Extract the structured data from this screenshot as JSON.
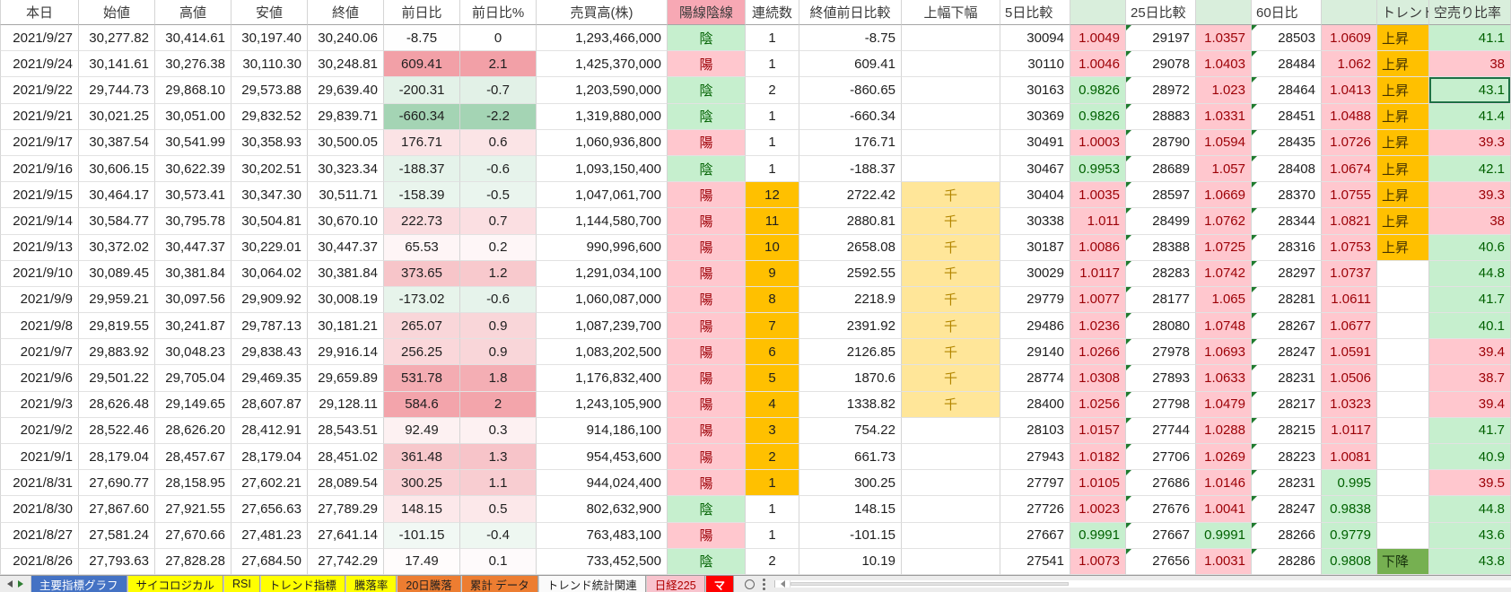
{
  "columns": [
    {
      "key": "date",
      "label": "本日"
    },
    {
      "key": "open",
      "label": "始値"
    },
    {
      "key": "high",
      "label": "高値"
    },
    {
      "key": "low",
      "label": "安値"
    },
    {
      "key": "close",
      "label": "終値"
    },
    {
      "key": "chg",
      "label": "前日比"
    },
    {
      "key": "chg_pct",
      "label": "前日比%"
    },
    {
      "key": "volume",
      "label": "売買高(株)"
    },
    {
      "key": "candle",
      "label": "陽線陰線"
    },
    {
      "key": "streak",
      "label": "連続数"
    },
    {
      "key": "close_cmp",
      "label": "終値前日比較"
    },
    {
      "key": "range_mark",
      "label": "上幅下幅"
    },
    {
      "key": "d5",
      "label": "5日比較"
    },
    {
      "key": "d5_ratio",
      "label": ""
    },
    {
      "key": "d25",
      "label": "25日比較"
    },
    {
      "key": "d25_ratio",
      "label": ""
    },
    {
      "key": "d60",
      "label": "60日比"
    },
    {
      "key": "d60_ratio",
      "label": ""
    },
    {
      "key": "trend",
      "label": "トレンド"
    },
    {
      "key": "short_ratio",
      "label": "空売り比率"
    }
  ],
  "rows": [
    {
      "date": "2021/9/27",
      "open": "30,277.82",
      "high": "30,414.61",
      "low": "30,197.40",
      "close": "30,240.06",
      "chg": "-8.75",
      "chg_pct": "0",
      "volume": "1,293,466,000",
      "candle": "陰",
      "streak": "1",
      "streak_hot": false,
      "close_cmp": "-8.75",
      "range_mark": "",
      "d5": "30094",
      "d5_ratio": "1.0049",
      "d25": "29197",
      "d25_ratio": "1.0357",
      "d60": "28503",
      "d60_ratio": "1.0609",
      "trend": "上昇",
      "short_ratio": "41.1",
      "selected": false
    },
    {
      "date": "2021/9/24",
      "open": "30,141.61",
      "high": "30,276.38",
      "low": "30,110.30",
      "close": "30,248.81",
      "chg": "609.41",
      "chg_pct": "2.1",
      "volume": "1,425,370,000",
      "candle": "陽",
      "streak": "1",
      "streak_hot": false,
      "close_cmp": "609.41",
      "range_mark": "",
      "d5": "30110",
      "d5_ratio": "1.0046",
      "d25": "29078",
      "d25_ratio": "1.0403",
      "d60": "28484",
      "d60_ratio": "1.062",
      "trend": "上昇",
      "short_ratio": "38",
      "selected": false
    },
    {
      "date": "2021/9/22",
      "open": "29,744.73",
      "high": "29,868.10",
      "low": "29,573.88",
      "close": "29,639.40",
      "chg": "-200.31",
      "chg_pct": "-0.7",
      "volume": "1,203,590,000",
      "candle": "陰",
      "streak": "2",
      "streak_hot": false,
      "close_cmp": "-860.65",
      "range_mark": "",
      "d5": "30163",
      "d5_ratio": "0.9826",
      "d25": "28972",
      "d25_ratio": "1.023",
      "d60": "28464",
      "d60_ratio": "1.0413",
      "trend": "上昇",
      "short_ratio": "43.1",
      "selected": true
    },
    {
      "date": "2021/9/21",
      "open": "30,021.25",
      "high": "30,051.00",
      "low": "29,832.52",
      "close": "29,839.71",
      "chg": "-660.34",
      "chg_pct": "-2.2",
      "volume": "1,319,880,000",
      "candle": "陰",
      "streak": "1",
      "streak_hot": false,
      "close_cmp": "-660.34",
      "range_mark": "",
      "d5": "30369",
      "d5_ratio": "0.9826",
      "d25": "28883",
      "d25_ratio": "1.0331",
      "d60": "28451",
      "d60_ratio": "1.0488",
      "trend": "上昇",
      "short_ratio": "41.4",
      "selected": false
    },
    {
      "date": "2021/9/17",
      "open": "30,387.54",
      "high": "30,541.99",
      "low": "30,358.93",
      "close": "30,500.05",
      "chg": "176.71",
      "chg_pct": "0.6",
      "volume": "1,060,936,800",
      "candle": "陽",
      "streak": "1",
      "streak_hot": false,
      "close_cmp": "176.71",
      "range_mark": "",
      "d5": "30491",
      "d5_ratio": "1.0003",
      "d25": "28790",
      "d25_ratio": "1.0594",
      "d60": "28435",
      "d60_ratio": "1.0726",
      "trend": "上昇",
      "short_ratio": "39.3",
      "selected": false
    },
    {
      "date": "2021/9/16",
      "open": "30,606.15",
      "high": "30,622.39",
      "low": "30,202.51",
      "close": "30,323.34",
      "chg": "-188.37",
      "chg_pct": "-0.6",
      "volume": "1,093,150,400",
      "candle": "陰",
      "streak": "1",
      "streak_hot": false,
      "close_cmp": "-188.37",
      "range_mark": "",
      "d5": "30467",
      "d5_ratio": "0.9953",
      "d25": "28689",
      "d25_ratio": "1.057",
      "d60": "28408",
      "d60_ratio": "1.0674",
      "trend": "上昇",
      "short_ratio": "42.1",
      "selected": false
    },
    {
      "date": "2021/9/15",
      "open": "30,464.17",
      "high": "30,573.41",
      "low": "30,347.30",
      "close": "30,511.71",
      "chg": "-158.39",
      "chg_pct": "-0.5",
      "volume": "1,047,061,700",
      "candle": "陽",
      "streak": "12",
      "streak_hot": true,
      "close_cmp": "2722.42",
      "range_mark": "千",
      "d5": "30404",
      "d5_ratio": "1.0035",
      "d25": "28597",
      "d25_ratio": "1.0669",
      "d60": "28370",
      "d60_ratio": "1.0755",
      "trend": "上昇",
      "short_ratio": "39.3",
      "selected": false
    },
    {
      "date": "2021/9/14",
      "open": "30,584.77",
      "high": "30,795.78",
      "low": "30,504.81",
      "close": "30,670.10",
      "chg": "222.73",
      "chg_pct": "0.7",
      "volume": "1,144,580,700",
      "candle": "陽",
      "streak": "11",
      "streak_hot": true,
      "close_cmp": "2880.81",
      "range_mark": "千",
      "d5": "30338",
      "d5_ratio": "1.011",
      "d25": "28499",
      "d25_ratio": "1.0762",
      "d60": "28344",
      "d60_ratio": "1.0821",
      "trend": "上昇",
      "short_ratio": "38",
      "selected": false
    },
    {
      "date": "2021/9/13",
      "open": "30,372.02",
      "high": "30,447.37",
      "low": "30,229.01",
      "close": "30,447.37",
      "chg": "65.53",
      "chg_pct": "0.2",
      "volume": "990,996,600",
      "candle": "陽",
      "streak": "10",
      "streak_hot": true,
      "close_cmp": "2658.08",
      "range_mark": "千",
      "d5": "30187",
      "d5_ratio": "1.0086",
      "d25": "28388",
      "d25_ratio": "1.0725",
      "d60": "28316",
      "d60_ratio": "1.0753",
      "trend": "上昇",
      "short_ratio": "40.6",
      "selected": false
    },
    {
      "date": "2021/9/10",
      "open": "30,089.45",
      "high": "30,381.84",
      "low": "30,064.02",
      "close": "30,381.84",
      "chg": "373.65",
      "chg_pct": "1.2",
      "volume": "1,291,034,100",
      "candle": "陽",
      "streak": "9",
      "streak_hot": true,
      "close_cmp": "2592.55",
      "range_mark": "千",
      "d5": "30029",
      "d5_ratio": "1.0117",
      "d25": "28283",
      "d25_ratio": "1.0742",
      "d60": "28297",
      "d60_ratio": "1.0737",
      "trend": "",
      "short_ratio": "44.8",
      "selected": false
    },
    {
      "date": "2021/9/9",
      "open": "29,959.21",
      "high": "30,097.56",
      "low": "29,909.92",
      "close": "30,008.19",
      "chg": "-173.02",
      "chg_pct": "-0.6",
      "volume": "1,060,087,000",
      "candle": "陽",
      "streak": "8",
      "streak_hot": true,
      "close_cmp": "2218.9",
      "range_mark": "千",
      "d5": "29779",
      "d5_ratio": "1.0077",
      "d25": "28177",
      "d25_ratio": "1.065",
      "d60": "28281",
      "d60_ratio": "1.0611",
      "trend": "",
      "short_ratio": "41.7",
      "selected": false
    },
    {
      "date": "2021/9/8",
      "open": "29,819.55",
      "high": "30,241.87",
      "low": "29,787.13",
      "close": "30,181.21",
      "chg": "265.07",
      "chg_pct": "0.9",
      "volume": "1,087,239,700",
      "candle": "陽",
      "streak": "7",
      "streak_hot": true,
      "close_cmp": "2391.92",
      "range_mark": "千",
      "d5": "29486",
      "d5_ratio": "1.0236",
      "d25": "28080",
      "d25_ratio": "1.0748",
      "d60": "28267",
      "d60_ratio": "1.0677",
      "trend": "",
      "short_ratio": "40.1",
      "selected": false
    },
    {
      "date": "2021/9/7",
      "open": "29,883.92",
      "high": "30,048.23",
      "low": "29,838.43",
      "close": "29,916.14",
      "chg": "256.25",
      "chg_pct": "0.9",
      "volume": "1,083,202,500",
      "candle": "陽",
      "streak": "6",
      "streak_hot": true,
      "close_cmp": "2126.85",
      "range_mark": "千",
      "d5": "29140",
      "d5_ratio": "1.0266",
      "d25": "27978",
      "d25_ratio": "1.0693",
      "d60": "28247",
      "d60_ratio": "1.0591",
      "trend": "",
      "short_ratio": "39.4",
      "selected": false
    },
    {
      "date": "2021/9/6",
      "open": "29,501.22",
      "high": "29,705.04",
      "low": "29,469.35",
      "close": "29,659.89",
      "chg": "531.78",
      "chg_pct": "1.8",
      "volume": "1,176,832,400",
      "candle": "陽",
      "streak": "5",
      "streak_hot": true,
      "close_cmp": "1870.6",
      "range_mark": "千",
      "d5": "28774",
      "d5_ratio": "1.0308",
      "d25": "27893",
      "d25_ratio": "1.0633",
      "d60": "28231",
      "d60_ratio": "1.0506",
      "trend": "",
      "short_ratio": "38.7",
      "selected": false
    },
    {
      "date": "2021/9/3",
      "open": "28,626.48",
      "high": "29,149.65",
      "low": "28,607.87",
      "close": "29,128.11",
      "chg": "584.6",
      "chg_pct": "2",
      "volume": "1,243,105,900",
      "candle": "陽",
      "streak": "4",
      "streak_hot": true,
      "close_cmp": "1338.82",
      "range_mark": "千",
      "d5": "28400",
      "d5_ratio": "1.0256",
      "d25": "27798",
      "d25_ratio": "1.0479",
      "d60": "28217",
      "d60_ratio": "1.0323",
      "trend": "",
      "short_ratio": "39.4",
      "selected": false
    },
    {
      "date": "2021/9/2",
      "open": "28,522.46",
      "high": "28,626.20",
      "low": "28,412.91",
      "close": "28,543.51",
      "chg": "92.49",
      "chg_pct": "0.3",
      "volume": "914,186,100",
      "candle": "陽",
      "streak": "3",
      "streak_hot": true,
      "close_cmp": "754.22",
      "range_mark": "",
      "d5": "28103",
      "d5_ratio": "1.0157",
      "d25": "27744",
      "d25_ratio": "1.0288",
      "d60": "28215",
      "d60_ratio": "1.0117",
      "trend": "",
      "short_ratio": "41.7",
      "selected": false
    },
    {
      "date": "2021/9/1",
      "open": "28,179.04",
      "high": "28,457.67",
      "low": "28,179.04",
      "close": "28,451.02",
      "chg": "361.48",
      "chg_pct": "1.3",
      "volume": "954,453,600",
      "candle": "陽",
      "streak": "2",
      "streak_hot": true,
      "close_cmp": "661.73",
      "range_mark": "",
      "d5": "27943",
      "d5_ratio": "1.0182",
      "d25": "27706",
      "d25_ratio": "1.0269",
      "d60": "28223",
      "d60_ratio": "1.0081",
      "trend": "",
      "short_ratio": "40.9",
      "selected": false
    },
    {
      "date": "2021/8/31",
      "open": "27,690.77",
      "high": "28,158.95",
      "low": "27,602.21",
      "close": "28,089.54",
      "chg": "300.25",
      "chg_pct": "1.1",
      "volume": "944,024,400",
      "candle": "陽",
      "streak": "1",
      "streak_hot": true,
      "close_cmp": "300.25",
      "range_mark": "",
      "d5": "27797",
      "d5_ratio": "1.0105",
      "d25": "27686",
      "d25_ratio": "1.0146",
      "d60": "28231",
      "d60_ratio": "0.995",
      "trend": "",
      "short_ratio": "39.5",
      "selected": false
    },
    {
      "date": "2021/8/30",
      "open": "27,867.60",
      "high": "27,921.55",
      "low": "27,656.63",
      "close": "27,789.29",
      "chg": "148.15",
      "chg_pct": "0.5",
      "volume": "802,632,900",
      "candle": "陰",
      "streak": "1",
      "streak_hot": false,
      "close_cmp": "148.15",
      "range_mark": "",
      "d5": "27726",
      "d5_ratio": "1.0023",
      "d25": "27676",
      "d25_ratio": "1.0041",
      "d60": "28247",
      "d60_ratio": "0.9838",
      "trend": "",
      "short_ratio": "44.8",
      "selected": false
    },
    {
      "date": "2021/8/27",
      "open": "27,581.24",
      "high": "27,670.66",
      "low": "27,481.23",
      "close": "27,641.14",
      "chg": "-101.15",
      "chg_pct": "-0.4",
      "volume": "763,483,100",
      "candle": "陽",
      "streak": "1",
      "streak_hot": false,
      "close_cmp": "-101.15",
      "range_mark": "",
      "d5": "27667",
      "d5_ratio": "0.9991",
      "d25": "27667",
      "d25_ratio": "0.9991",
      "d60": "28266",
      "d60_ratio": "0.9779",
      "trend": "",
      "short_ratio": "43.6",
      "selected": false
    },
    {
      "date": "2021/8/26",
      "open": "27,793.63",
      "high": "27,828.28",
      "low": "27,684.50",
      "close": "27,742.29",
      "chg": "17.49",
      "chg_pct": "0.1",
      "volume": "733,452,500",
      "candle": "陰",
      "streak": "2",
      "streak_hot": false,
      "close_cmp": "10.19",
      "range_mark": "",
      "d5": "27541",
      "d5_ratio": "1.0073",
      "d25": "27656",
      "d25_ratio": "1.0031",
      "d60": "28286",
      "d60_ratio": "0.9808",
      "trend": "下降",
      "short_ratio": "43.8",
      "selected": false
    }
  ],
  "scales": {
    "chg": {
      "min": -660.34,
      "max": 609.41
    },
    "chg_pct": {
      "min": -2.2,
      "max": 2.1
    }
  },
  "colors": {
    "good_bg": "#C6EFCE",
    "good_fg": "#006100",
    "bad_bg": "#FFC7CE",
    "bad_fg": "#9C0006",
    "streak_orange": "#FFC000",
    "gold_bg": "#FFE699",
    "gold_fg": "#B38600",
    "header_pink": "#F7A8B4",
    "header_green": "#D9EEDC",
    "trend_up_bg": "#FFC000",
    "trend_down_bg": "#76B051",
    "chg_pos": "#F2A0A7",
    "chg_neg": "#A4D4B4",
    "selection_border": "#1E7145",
    "error_triangle": "#1E7B2E"
  },
  "rules": {
    "candle_up": "陽",
    "candle_down": "陰",
    "trend_up": "上昇",
    "trend_down": "下降",
    "short_ratio_green_threshold": 40
  },
  "sheet_tabs": [
    {
      "label": "主要指標グラフ",
      "style": "blue"
    },
    {
      "label": "サイコロジカル",
      "style": "yellow"
    },
    {
      "label": "RSI",
      "style": "yellow"
    },
    {
      "label": "トレンド指標",
      "style": "yellow"
    },
    {
      "label": "騰落率",
      "style": "yellow"
    },
    {
      "label": "20日騰落",
      "style": "orange"
    },
    {
      "label": "累計 データ",
      "style": "orange"
    },
    {
      "label": "トレンド統計関連",
      "style": "plain"
    },
    {
      "label": "日経225",
      "style": "pink"
    },
    {
      "label": "マ",
      "style": "red"
    }
  ],
  "selection": {
    "row_date": "2021/9/22",
    "column": "short_ratio"
  }
}
